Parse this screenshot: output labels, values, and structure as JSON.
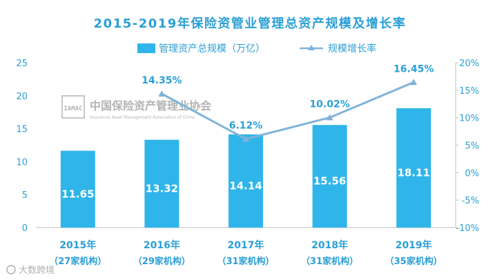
{
  "chart_data": {
    "type": "bar",
    "title": "2015-2019年保险资管业管理总资产规模及增长率",
    "categories": [
      "2015年",
      "2016年",
      "2017年",
      "2018年",
      "2019年"
    ],
    "category_sublabels": [
      "（27家机构）",
      "（29家机构）",
      "（31家机构）",
      "（31家机构）",
      "（35家机构）"
    ],
    "series": [
      {
        "name": "管理资产总规模（万亿）",
        "type": "bar",
        "axis": "left",
        "values": [
          11.65,
          13.32,
          14.14,
          15.56,
          18.11
        ],
        "labels": [
          "11.65",
          "13.32",
          "14.14",
          "15.56",
          "18.11"
        ]
      },
      {
        "name": "规模增长率",
        "type": "line",
        "axis": "right",
        "values": [
          null,
          14.35,
          6.12,
          10.02,
          16.45
        ],
        "labels": [
          "",
          "14.35%",
          "6.12%",
          "10.02%",
          "16.45%"
        ]
      }
    ],
    "y_left": {
      "ylim": [
        0,
        25
      ],
      "ticks": [
        "0",
        "5",
        "10",
        "15",
        "20",
        "25"
      ]
    },
    "y_right": {
      "ylim": [
        -10,
        20
      ],
      "ticks": [
        "-10%",
        "-5%",
        "0%",
        "5%",
        "10%",
        "15%",
        "20%"
      ]
    },
    "legend_position": "top-center",
    "grid": false,
    "colors": {
      "bar": "#2fb5ea",
      "line": "#7fb3d9",
      "text": "#2a9fd6",
      "axis": "#bfbfbf",
      "watermark": "#9a9a9a"
    }
  },
  "watermark": {
    "logo_text": "IAMAC",
    "org_name": "中国保险资产管理业协会",
    "org_name_en": "Insurance Asset Management Association of China"
  },
  "source_badge": "大数跨境"
}
